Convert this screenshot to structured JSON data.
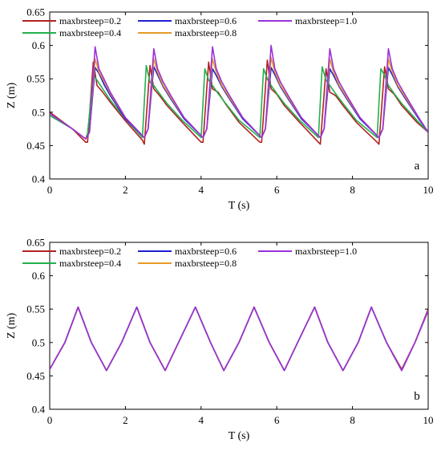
{
  "chart_data": [
    {
      "type": "line",
      "panel": "a",
      "xlabel": "T (s)",
      "ylabel": "Z (m)",
      "xlim": [
        0,
        10
      ],
      "ylim": [
        0.4,
        0.65
      ],
      "xticks": [
        0,
        2,
        4,
        6,
        8,
        10
      ],
      "yticks": [
        0.4,
        0.45,
        0.5,
        0.55,
        0.6,
        0.65
      ],
      "xtick_labels": [
        "0",
        "2",
        "4",
        "6",
        "8",
        "10"
      ],
      "ytick_labels": [
        "0.4",
        "0.45",
        "0.5",
        "0.55",
        "0.6",
        "0.65"
      ],
      "grid": false,
      "legend_position": "top",
      "series": [
        {
          "name": "maxbrsteep=0.2",
          "color": "#b22222",
          "x": [
            0,
            0.6,
            0.95,
            1.0,
            1.15,
            1.25,
            1.4,
            1.6,
            2.0,
            2.45,
            2.5,
            2.65,
            2.75,
            2.9,
            3.1,
            3.5,
            4.0,
            4.05,
            4.2,
            4.3,
            4.45,
            4.65,
            5.0,
            5.55,
            5.6,
            5.75,
            5.85,
            6.0,
            6.2,
            6.6,
            7.1,
            7.15,
            7.3,
            7.4,
            7.55,
            7.75,
            8.1,
            8.65,
            8.7,
            8.85,
            8.95,
            9.1,
            9.3,
            9.7,
            10.0
          ],
          "y": [
            0.5,
            0.475,
            0.455,
            0.455,
            0.575,
            0.54,
            0.53,
            0.515,
            0.487,
            0.458,
            0.452,
            0.57,
            0.535,
            0.525,
            0.51,
            0.485,
            0.455,
            0.455,
            0.575,
            0.535,
            0.53,
            0.512,
            0.485,
            0.455,
            0.455,
            0.578,
            0.535,
            0.527,
            0.51,
            0.485,
            0.455,
            0.452,
            0.565,
            0.53,
            0.525,
            0.51,
            0.485,
            0.455,
            0.452,
            0.568,
            0.535,
            0.527,
            0.51,
            0.485,
            0.47
          ]
        },
        {
          "name": "maxbrsteep=0.4",
          "color": "#22b14c",
          "x": [
            0,
            0.6,
            0.95,
            1.0,
            1.15,
            1.25,
            1.4,
            1.6,
            2.0,
            2.45,
            2.55,
            2.65,
            2.75,
            2.9,
            3.1,
            3.5,
            4.0,
            4.1,
            4.2,
            4.3,
            4.45,
            4.65,
            5.0,
            5.55,
            5.65,
            5.75,
            5.85,
            6.0,
            6.2,
            6.6,
            7.1,
            7.2,
            7.3,
            7.4,
            7.55,
            7.75,
            8.1,
            8.65,
            8.75,
            8.85,
            8.95,
            9.1,
            9.3,
            9.7,
            10.0
          ],
          "y": [
            0.495,
            0.475,
            0.46,
            0.468,
            0.556,
            0.548,
            0.535,
            0.518,
            0.49,
            0.462,
            0.57,
            0.545,
            0.54,
            0.528,
            0.513,
            0.488,
            0.462,
            0.565,
            0.548,
            0.54,
            0.528,
            0.513,
            0.488,
            0.462,
            0.565,
            0.55,
            0.54,
            0.528,
            0.513,
            0.488,
            0.462,
            0.568,
            0.548,
            0.54,
            0.528,
            0.513,
            0.488,
            0.462,
            0.565,
            0.555,
            0.54,
            0.528,
            0.513,
            0.488,
            0.47
          ]
        },
        {
          "name": "maxbrsteep=0.6",
          "color": "#1f1fd0",
          "x": [
            0,
            0.6,
            0.95,
            1.05,
            1.2,
            1.3,
            1.45,
            1.6,
            2.0,
            2.5,
            2.6,
            2.75,
            2.85,
            3.0,
            3.2,
            3.55,
            4.05,
            4.15,
            4.3,
            4.4,
            4.55,
            4.75,
            5.1,
            5.6,
            5.7,
            5.85,
            5.95,
            6.1,
            6.3,
            6.65,
            7.15,
            7.25,
            7.4,
            7.5,
            7.65,
            7.85,
            8.2,
            8.7,
            8.8,
            8.95,
            9.05,
            9.2,
            9.4,
            9.75,
            10.0
          ],
          "y": [
            0.498,
            0.475,
            0.46,
            0.47,
            0.567,
            0.558,
            0.54,
            0.525,
            0.49,
            0.462,
            0.475,
            0.568,
            0.556,
            0.538,
            0.52,
            0.49,
            0.462,
            0.475,
            0.565,
            0.555,
            0.538,
            0.52,
            0.49,
            0.462,
            0.475,
            0.567,
            0.556,
            0.538,
            0.52,
            0.49,
            0.462,
            0.475,
            0.565,
            0.555,
            0.538,
            0.52,
            0.49,
            0.462,
            0.475,
            0.567,
            0.556,
            0.538,
            0.52,
            0.49,
            0.47
          ]
        },
        {
          "name": "maxbrsteep=0.8",
          "color": "#e69a28",
          "x": [
            0,
            0.6,
            0.95,
            1.05,
            1.2,
            1.3,
            1.45,
            1.6,
            2.0,
            2.5,
            2.6,
            2.75,
            2.85,
            3.0,
            3.2,
            3.55,
            4.05,
            4.15,
            4.3,
            4.4,
            4.55,
            4.75,
            5.1,
            5.6,
            5.7,
            5.85,
            5.95,
            6.1,
            6.3,
            6.65,
            7.15,
            7.25,
            7.4,
            7.5,
            7.65,
            7.85,
            8.2,
            8.7,
            8.8,
            8.95,
            9.05,
            9.2,
            9.4,
            9.75,
            10.0
          ],
          "y": [
            0.498,
            0.475,
            0.46,
            0.47,
            0.58,
            0.56,
            0.545,
            0.528,
            0.492,
            0.462,
            0.475,
            0.58,
            0.56,
            0.54,
            0.522,
            0.492,
            0.462,
            0.475,
            0.58,
            0.56,
            0.54,
            0.522,
            0.492,
            0.462,
            0.475,
            0.582,
            0.56,
            0.54,
            0.522,
            0.492,
            0.462,
            0.475,
            0.58,
            0.56,
            0.54,
            0.522,
            0.492,
            0.462,
            0.475,
            0.58,
            0.56,
            0.54,
            0.522,
            0.492,
            0.47
          ]
        },
        {
          "name": "maxbrsteep=1.0",
          "color": "#9b30d9",
          "x": [
            0,
            0.6,
            0.95,
            1.05,
            1.2,
            1.3,
            1.45,
            1.6,
            2.0,
            2.5,
            2.6,
            2.75,
            2.85,
            3.0,
            3.2,
            3.55,
            4.05,
            4.15,
            4.3,
            4.4,
            4.55,
            4.75,
            5.1,
            5.6,
            5.7,
            5.85,
            5.95,
            6.1,
            6.3,
            6.65,
            7.15,
            7.25,
            7.4,
            7.5,
            7.65,
            7.85,
            8.2,
            8.7,
            8.8,
            8.95,
            9.05,
            9.2,
            9.4,
            9.75,
            10.0
          ],
          "y": [
            0.498,
            0.475,
            0.46,
            0.47,
            0.598,
            0.565,
            0.548,
            0.53,
            0.492,
            0.462,
            0.475,
            0.595,
            0.565,
            0.545,
            0.525,
            0.492,
            0.462,
            0.475,
            0.598,
            0.565,
            0.545,
            0.525,
            0.492,
            0.462,
            0.475,
            0.6,
            0.565,
            0.545,
            0.525,
            0.492,
            0.462,
            0.475,
            0.595,
            0.565,
            0.545,
            0.525,
            0.492,
            0.462,
            0.475,
            0.595,
            0.565,
            0.545,
            0.525,
            0.492,
            0.47
          ]
        }
      ]
    },
    {
      "type": "line",
      "panel": "b",
      "xlabel": "T (s)",
      "ylabel": "Z (m)",
      "xlim": [
        0,
        10
      ],
      "ylim": [
        0.4,
        0.65
      ],
      "xticks": [
        0,
        2,
        4,
        6,
        8,
        10
      ],
      "yticks": [
        0.4,
        0.45,
        0.5,
        0.55,
        0.6,
        0.65
      ],
      "xtick_labels": [
        "0",
        "2",
        "4",
        "6",
        "8",
        "10"
      ],
      "ytick_labels": [
        "0.4",
        "0.45",
        "0.5",
        "0.55",
        "0.6",
        "0.65"
      ],
      "grid": false,
      "legend_position": "top",
      "series": [
        {
          "name": "maxbrsteep=0.2",
          "color": "#b22222",
          "x": [
            0,
            0.4,
            0.75,
            1.1,
            1.5,
            1.9,
            2.3,
            2.65,
            3.05,
            3.85,
            4.25,
            4.6,
            5.0,
            5.4,
            5.8,
            6.2,
            6.55,
            7.0,
            7.35,
            7.75,
            8.15,
            8.5,
            8.9,
            9.3,
            9.65,
            10.0
          ],
          "y": [
            0.46,
            0.5,
            0.553,
            0.5,
            0.458,
            0.5,
            0.553,
            0.5,
            0.458,
            0.553,
            0.5,
            0.458,
            0.5,
            0.553,
            0.5,
            0.458,
            0.5,
            0.553,
            0.5,
            0.458,
            0.5,
            0.553,
            0.5,
            0.46,
            0.5,
            0.55
          ]
        },
        {
          "name": "maxbrsteep=0.4",
          "color": "#22b14c",
          "x": [
            0,
            0.4,
            0.75,
            1.1,
            1.5,
            1.9,
            2.3,
            2.65,
            3.05,
            3.85,
            4.25,
            4.6,
            5.0,
            5.4,
            5.8,
            6.2,
            6.55,
            7.0,
            7.35,
            7.75,
            8.15,
            8.5,
            8.9,
            9.3,
            9.65,
            10.0
          ],
          "y": [
            0.46,
            0.5,
            0.553,
            0.5,
            0.458,
            0.5,
            0.553,
            0.5,
            0.458,
            0.553,
            0.5,
            0.458,
            0.5,
            0.553,
            0.5,
            0.458,
            0.5,
            0.553,
            0.5,
            0.458,
            0.5,
            0.553,
            0.5,
            0.458,
            0.5,
            0.548
          ]
        },
        {
          "name": "maxbrsteep=0.6",
          "color": "#1f1fd0",
          "x": [
            0,
            0.4,
            0.75,
            1.1,
            1.5,
            1.9,
            2.3,
            2.65,
            3.05,
            3.85,
            4.25,
            4.6,
            5.0,
            5.4,
            5.8,
            6.2,
            6.55,
            7.0,
            7.35,
            7.75,
            8.15,
            8.5,
            8.9,
            9.3,
            9.65,
            10.0
          ],
          "y": [
            0.46,
            0.5,
            0.553,
            0.5,
            0.458,
            0.5,
            0.553,
            0.5,
            0.458,
            0.553,
            0.5,
            0.458,
            0.5,
            0.553,
            0.5,
            0.458,
            0.5,
            0.553,
            0.5,
            0.458,
            0.5,
            0.553,
            0.5,
            0.458,
            0.5,
            0.548
          ]
        },
        {
          "name": "maxbrsteep=0.8",
          "color": "#e69a28",
          "x": [
            0,
            0.4,
            0.75,
            1.1,
            1.5,
            1.9,
            2.3,
            2.65,
            3.05,
            3.85,
            4.25,
            4.6,
            5.0,
            5.4,
            5.8,
            6.2,
            6.55,
            7.0,
            7.35,
            7.75,
            8.15,
            8.5,
            8.9,
            9.3,
            9.65,
            10.0
          ],
          "y": [
            0.46,
            0.5,
            0.553,
            0.5,
            0.458,
            0.5,
            0.553,
            0.5,
            0.458,
            0.553,
            0.5,
            0.458,
            0.5,
            0.553,
            0.5,
            0.458,
            0.5,
            0.553,
            0.5,
            0.458,
            0.5,
            0.553,
            0.5,
            0.458,
            0.5,
            0.548
          ]
        },
        {
          "name": "maxbrsteep=1.0",
          "color": "#9b30d9",
          "x": [
            0,
            0.4,
            0.75,
            1.1,
            1.5,
            1.9,
            2.3,
            2.65,
            3.05,
            3.85,
            4.25,
            4.6,
            5.0,
            5.4,
            5.8,
            6.2,
            6.55,
            7.0,
            7.35,
            7.75,
            8.15,
            8.5,
            8.9,
            9.3,
            9.65,
            10.0
          ],
          "y": [
            0.46,
            0.5,
            0.553,
            0.5,
            0.458,
            0.5,
            0.553,
            0.5,
            0.458,
            0.553,
            0.5,
            0.458,
            0.5,
            0.553,
            0.5,
            0.458,
            0.5,
            0.553,
            0.5,
            0.458,
            0.5,
            0.553,
            0.5,
            0.458,
            0.5,
            0.548
          ]
        }
      ]
    }
  ]
}
